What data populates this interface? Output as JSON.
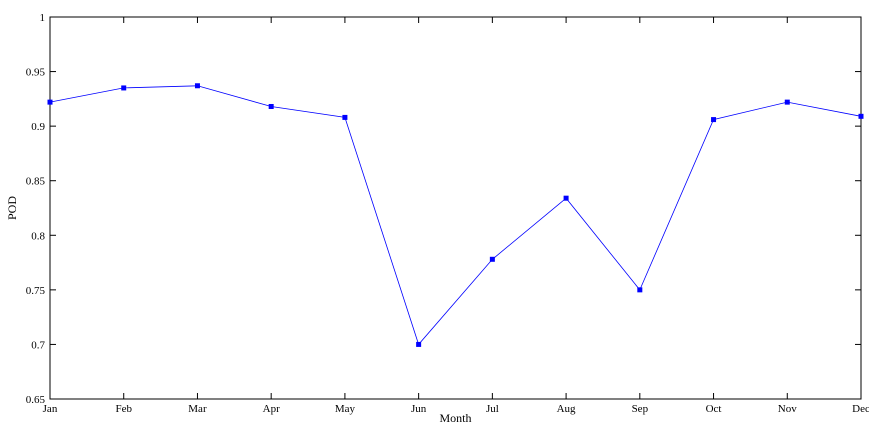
{
  "chart_data": {
    "type": "line",
    "title": "",
    "xlabel": "Month",
    "ylabel": "POD",
    "categories": [
      "Jan",
      "Feb",
      "Mar",
      "Apr",
      "May",
      "Jun",
      "Jul",
      "Aug",
      "Sep",
      "Oct",
      "Nov",
      "Dec"
    ],
    "series": [
      {
        "values": [
          0.922,
          0.935,
          0.937,
          0.918,
          0.908,
          0.7,
          0.778,
          0.834,
          0.75,
          0.906,
          0.922,
          0.909
        ],
        "color": "#0000ff",
        "marker": "square"
      }
    ],
    "ylim": [
      0.65,
      1
    ],
    "yticks": [
      0.65,
      0.7,
      0.75,
      0.8,
      0.85,
      0.9,
      0.95,
      1
    ],
    "ytick_labels": [
      "0.65",
      "0.7",
      "0.75",
      "0.8",
      "0.85",
      "0.9",
      "0.95",
      "1"
    ],
    "grid": false,
    "legend": "none"
  }
}
